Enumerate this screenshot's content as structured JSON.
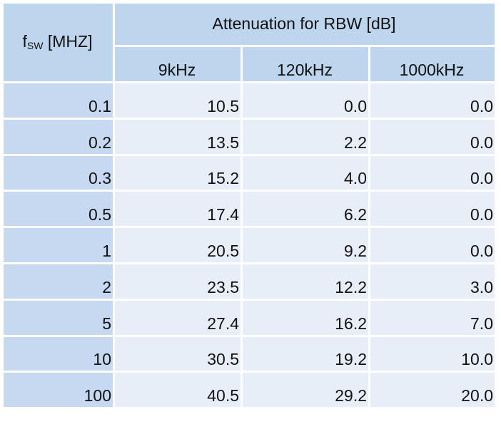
{
  "table": {
    "row_header": {
      "symbol": "f",
      "subscript": "SW",
      "unit": "[MHZ]"
    },
    "group_header": "Attenuation  for RBW [dB]",
    "columns": [
      "9kHz",
      "120kHz",
      "1000kHz"
    ],
    "rows": [
      [
        "0.1",
        "10.5",
        "0.0",
        "0.0"
      ],
      [
        "0.2",
        "13.5",
        "2.2",
        "0.0"
      ],
      [
        "0.3",
        "15.2",
        "4.0",
        "0.0"
      ],
      [
        "0.5",
        "17.4",
        "6.2",
        "0.0"
      ],
      [
        "1",
        "20.5",
        "9.2",
        "0.0"
      ],
      [
        "2",
        "23.5",
        "12.2",
        "3.0"
      ],
      [
        "5",
        "27.4",
        "16.2",
        "7.0"
      ],
      [
        "10",
        "30.5",
        "19.2",
        "10.0"
      ],
      [
        "100",
        "40.5",
        "29.2",
        "20.0"
      ]
    ]
  }
}
